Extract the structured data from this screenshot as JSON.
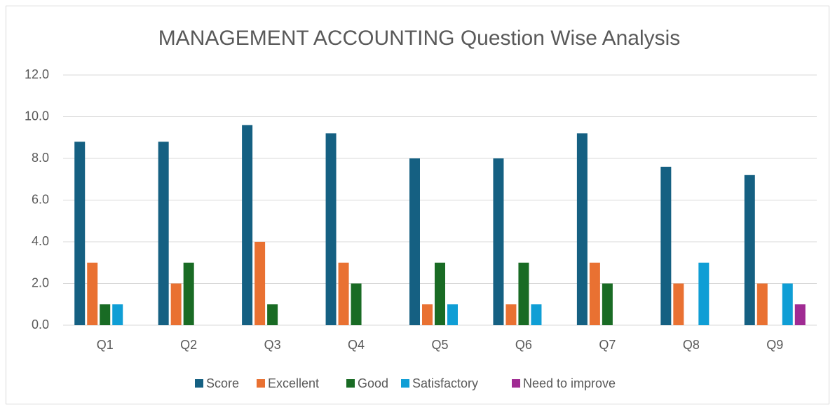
{
  "chart_data": {
    "type": "bar",
    "title": "MANAGEMENT ACCOUNTING Question Wise Analysis",
    "categories": [
      "Q1",
      "Q2",
      "Q3",
      "Q4",
      "Q5",
      "Q6",
      "Q7",
      "Q8",
      "Q9"
    ],
    "series": [
      {
        "name": "Score",
        "color": "#156082",
        "values": [
          8.8,
          8.8,
          9.6,
          9.2,
          8.0,
          8.0,
          9.2,
          7.6,
          7.2
        ]
      },
      {
        "name": "Excellent",
        "color": "#e97132",
        "values": [
          3,
          2,
          4,
          3,
          1,
          1,
          3,
          2,
          2
        ]
      },
      {
        "name": "Good",
        "color": "#196b24",
        "values": [
          1,
          3,
          1,
          2,
          3,
          3,
          2,
          0,
          0
        ]
      },
      {
        "name": "Satisfactory",
        "color": "#0f9ed5",
        "values": [
          1,
          0,
          0,
          0,
          1,
          1,
          0,
          3,
          2
        ]
      },
      {
        "name": "Need to improve",
        "color": "#a02b93",
        "values": [
          0,
          0,
          0,
          0,
          0,
          0,
          0,
          0,
          1
        ]
      }
    ],
    "ylim": [
      0,
      12
    ],
    "yticks": [
      {
        "value": 0,
        "label": "0.0"
      },
      {
        "value": 2,
        "label": "2.0"
      },
      {
        "value": 4,
        "label": "4.0"
      },
      {
        "value": 6,
        "label": "6.0"
      },
      {
        "value": 8,
        "label": "8.0"
      },
      {
        "value": 10,
        "label": "10.0"
      },
      {
        "value": 12,
        "label": "12.0"
      }
    ],
    "grid": true,
    "legend": "bottom"
  }
}
